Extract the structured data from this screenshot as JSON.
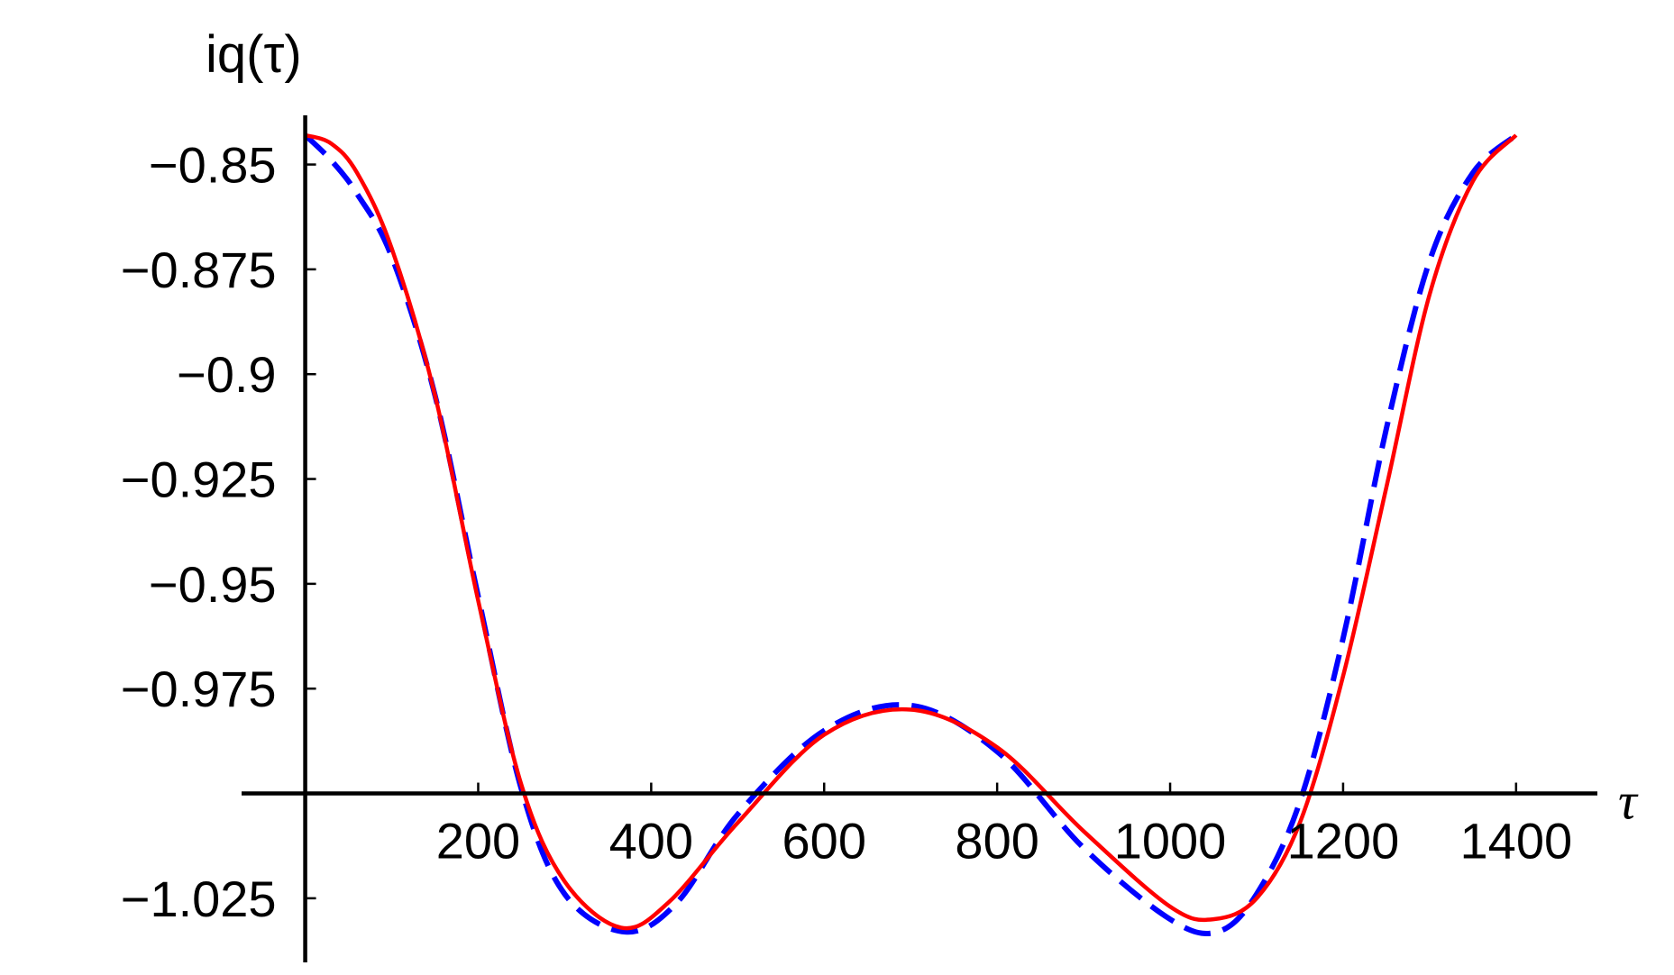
{
  "chart_data": {
    "type": "line",
    "title": "",
    "xlabel": "τ",
    "ylabel": "iq(τ)",
    "xlim": [
      -35,
      1445
    ],
    "ylim": [
      -1.039,
      -0.843
    ],
    "x_axis_crossing_y": -1.0,
    "x_ticks": [
      200,
      400,
      600,
      800,
      1000,
      1200,
      1400
    ],
    "x_tick_labels": [
      "200",
      "400",
      "600",
      "800",
      "1000",
      "1200",
      "1400"
    ],
    "y_ticks": [
      -0.85,
      -0.875,
      -0.9,
      -0.925,
      -0.95,
      -0.975,
      -1.025
    ],
    "y_tick_labels": [
      "−0.85",
      "−0.875",
      "−0.9",
      "−0.925",
      "−0.95",
      "−0.975",
      "−1.025"
    ],
    "grid": false,
    "series": [
      {
        "color": "#ff0000",
        "dash": "solid",
        "x": [
          0,
          30,
          60,
          100,
          150,
          200,
          250,
          300,
          365,
          420,
          500,
          600,
          700,
          800,
          900,
          1000,
          1050,
          1100,
          1150,
          1200,
          1250,
          1300,
          1350,
          1400
        ],
        "y": [
          -0.843,
          -0.845,
          -0.852,
          -0.87,
          -0.905,
          -0.954,
          -0.998,
          -1.021,
          -1.032,
          -1.026,
          -1.007,
          -0.986,
          -0.98,
          -0.989,
          -1.009,
          -1.027,
          -1.03,
          -1.025,
          -1.007,
          -0.972,
          -0.927,
          -0.881,
          -0.854,
          -0.843
        ]
      },
      {
        "color": "#0000ff",
        "dash": "dashed",
        "x": [
          0,
          30,
          60,
          100,
          150,
          200,
          250,
          300,
          370,
          430,
          500,
          600,
          700,
          800,
          900,
          1000,
          1055,
          1100,
          1150,
          1200,
          1250,
          1300,
          1350,
          1400
        ],
        "y": [
          -0.843,
          -0.849,
          -0.857,
          -0.872,
          -0.905,
          -0.953,
          -0.999,
          -1.024,
          -1.033,
          -1.026,
          -1.005,
          -0.985,
          -0.979,
          -0.99,
          -1.013,
          -1.03,
          -1.033,
          -1.024,
          -1.002,
          -0.963,
          -0.913,
          -0.873,
          -0.852,
          -0.843
        ]
      }
    ]
  }
}
